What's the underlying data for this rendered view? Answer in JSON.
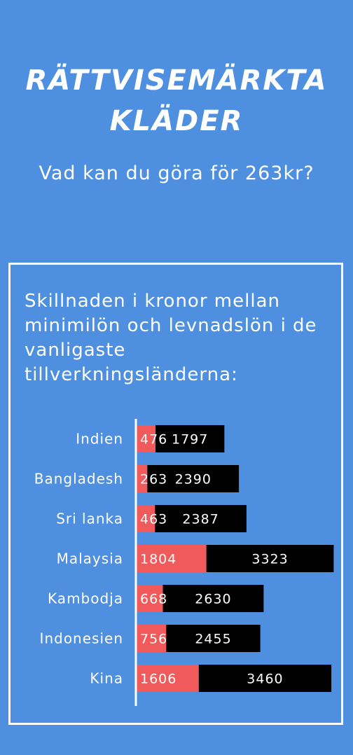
{
  "header": {
    "title_line1": "RÄTTVISEMÄRKTA",
    "title_line2": "KLÄDER",
    "subtitle": "Vad kan du göra för 263kr?"
  },
  "panel": {
    "heading": "Skillnaden i kronor mellan minimilön och levnadslön i de vanligaste tillverkningsländerna:"
  },
  "colors": {
    "background": "#4f8fe0",
    "minimum_wage": "#f05a5a",
    "living_wage_gap": "#000000",
    "text": "#ffffff"
  },
  "chart_data": {
    "type": "bar",
    "orientation": "horizontal",
    "stacked": true,
    "categories": [
      "Indien",
      "Bangladesh",
      "Sri lanka",
      "Malaysia",
      "Kambodja",
      "Indonesien",
      "Kina"
    ],
    "series": [
      {
        "values": [
          476,
          263,
          463,
          1804,
          668,
          756,
          1606
        ],
        "color": "#f05a5a"
      },
      {
        "values": [
          1797,
          2390,
          2387,
          3323,
          2630,
          2455,
          3460
        ],
        "color": "#000000"
      }
    ],
    "data_labels": true,
    "legend": "none",
    "grid": false
  }
}
